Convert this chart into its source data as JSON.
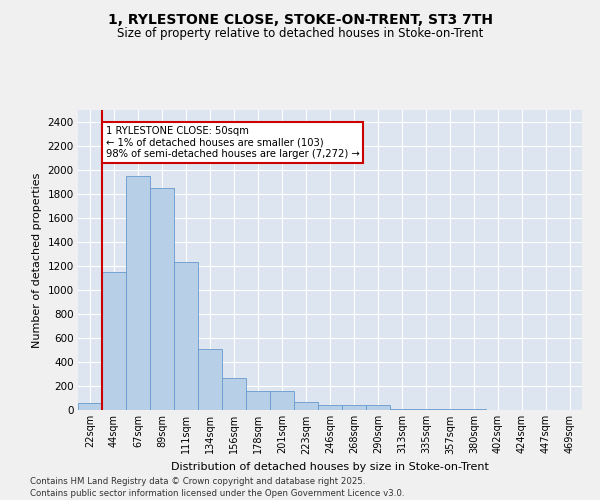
{
  "title_line1": "1, RYLESTONE CLOSE, STOKE-ON-TRENT, ST3 7TH",
  "title_line2": "Size of property relative to detached houses in Stoke-on-Trent",
  "xlabel": "Distribution of detached houses by size in Stoke-on-Trent",
  "ylabel": "Number of detached properties",
  "categories": [
    "22sqm",
    "44sqm",
    "67sqm",
    "89sqm",
    "111sqm",
    "134sqm",
    "156sqm",
    "178sqm",
    "201sqm",
    "223sqm",
    "246sqm",
    "268sqm",
    "290sqm",
    "313sqm",
    "335sqm",
    "357sqm",
    "380sqm",
    "402sqm",
    "424sqm",
    "447sqm",
    "469sqm"
  ],
  "values": [
    60,
    1150,
    1950,
    1850,
    1230,
    510,
    270,
    160,
    160,
    70,
    40,
    40,
    40,
    10,
    10,
    10,
    5,
    3,
    3,
    3,
    3
  ],
  "bar_color": "#b8cfe8",
  "bar_edge_color": "#6699cc",
  "vline_x": 0.5,
  "vline_color": "#cc0000",
  "annotation_text": "1 RYLESTONE CLOSE: 50sqm\n← 1% of detached houses are smaller (103)\n98% of semi-detached houses are larger (7,272) →",
  "annotation_box_edgecolor": "#cc0000",
  "ylim_max": 2500,
  "ytick_step": 200,
  "background_color": "#dde6f0",
  "grid_color": "#ffffff",
  "fig_bg_color": "#f0f0f0",
  "footer_line1": "Contains HM Land Registry data © Crown copyright and database right 2025.",
  "footer_line2": "Contains public sector information licensed under the Open Government Licence v3.0."
}
